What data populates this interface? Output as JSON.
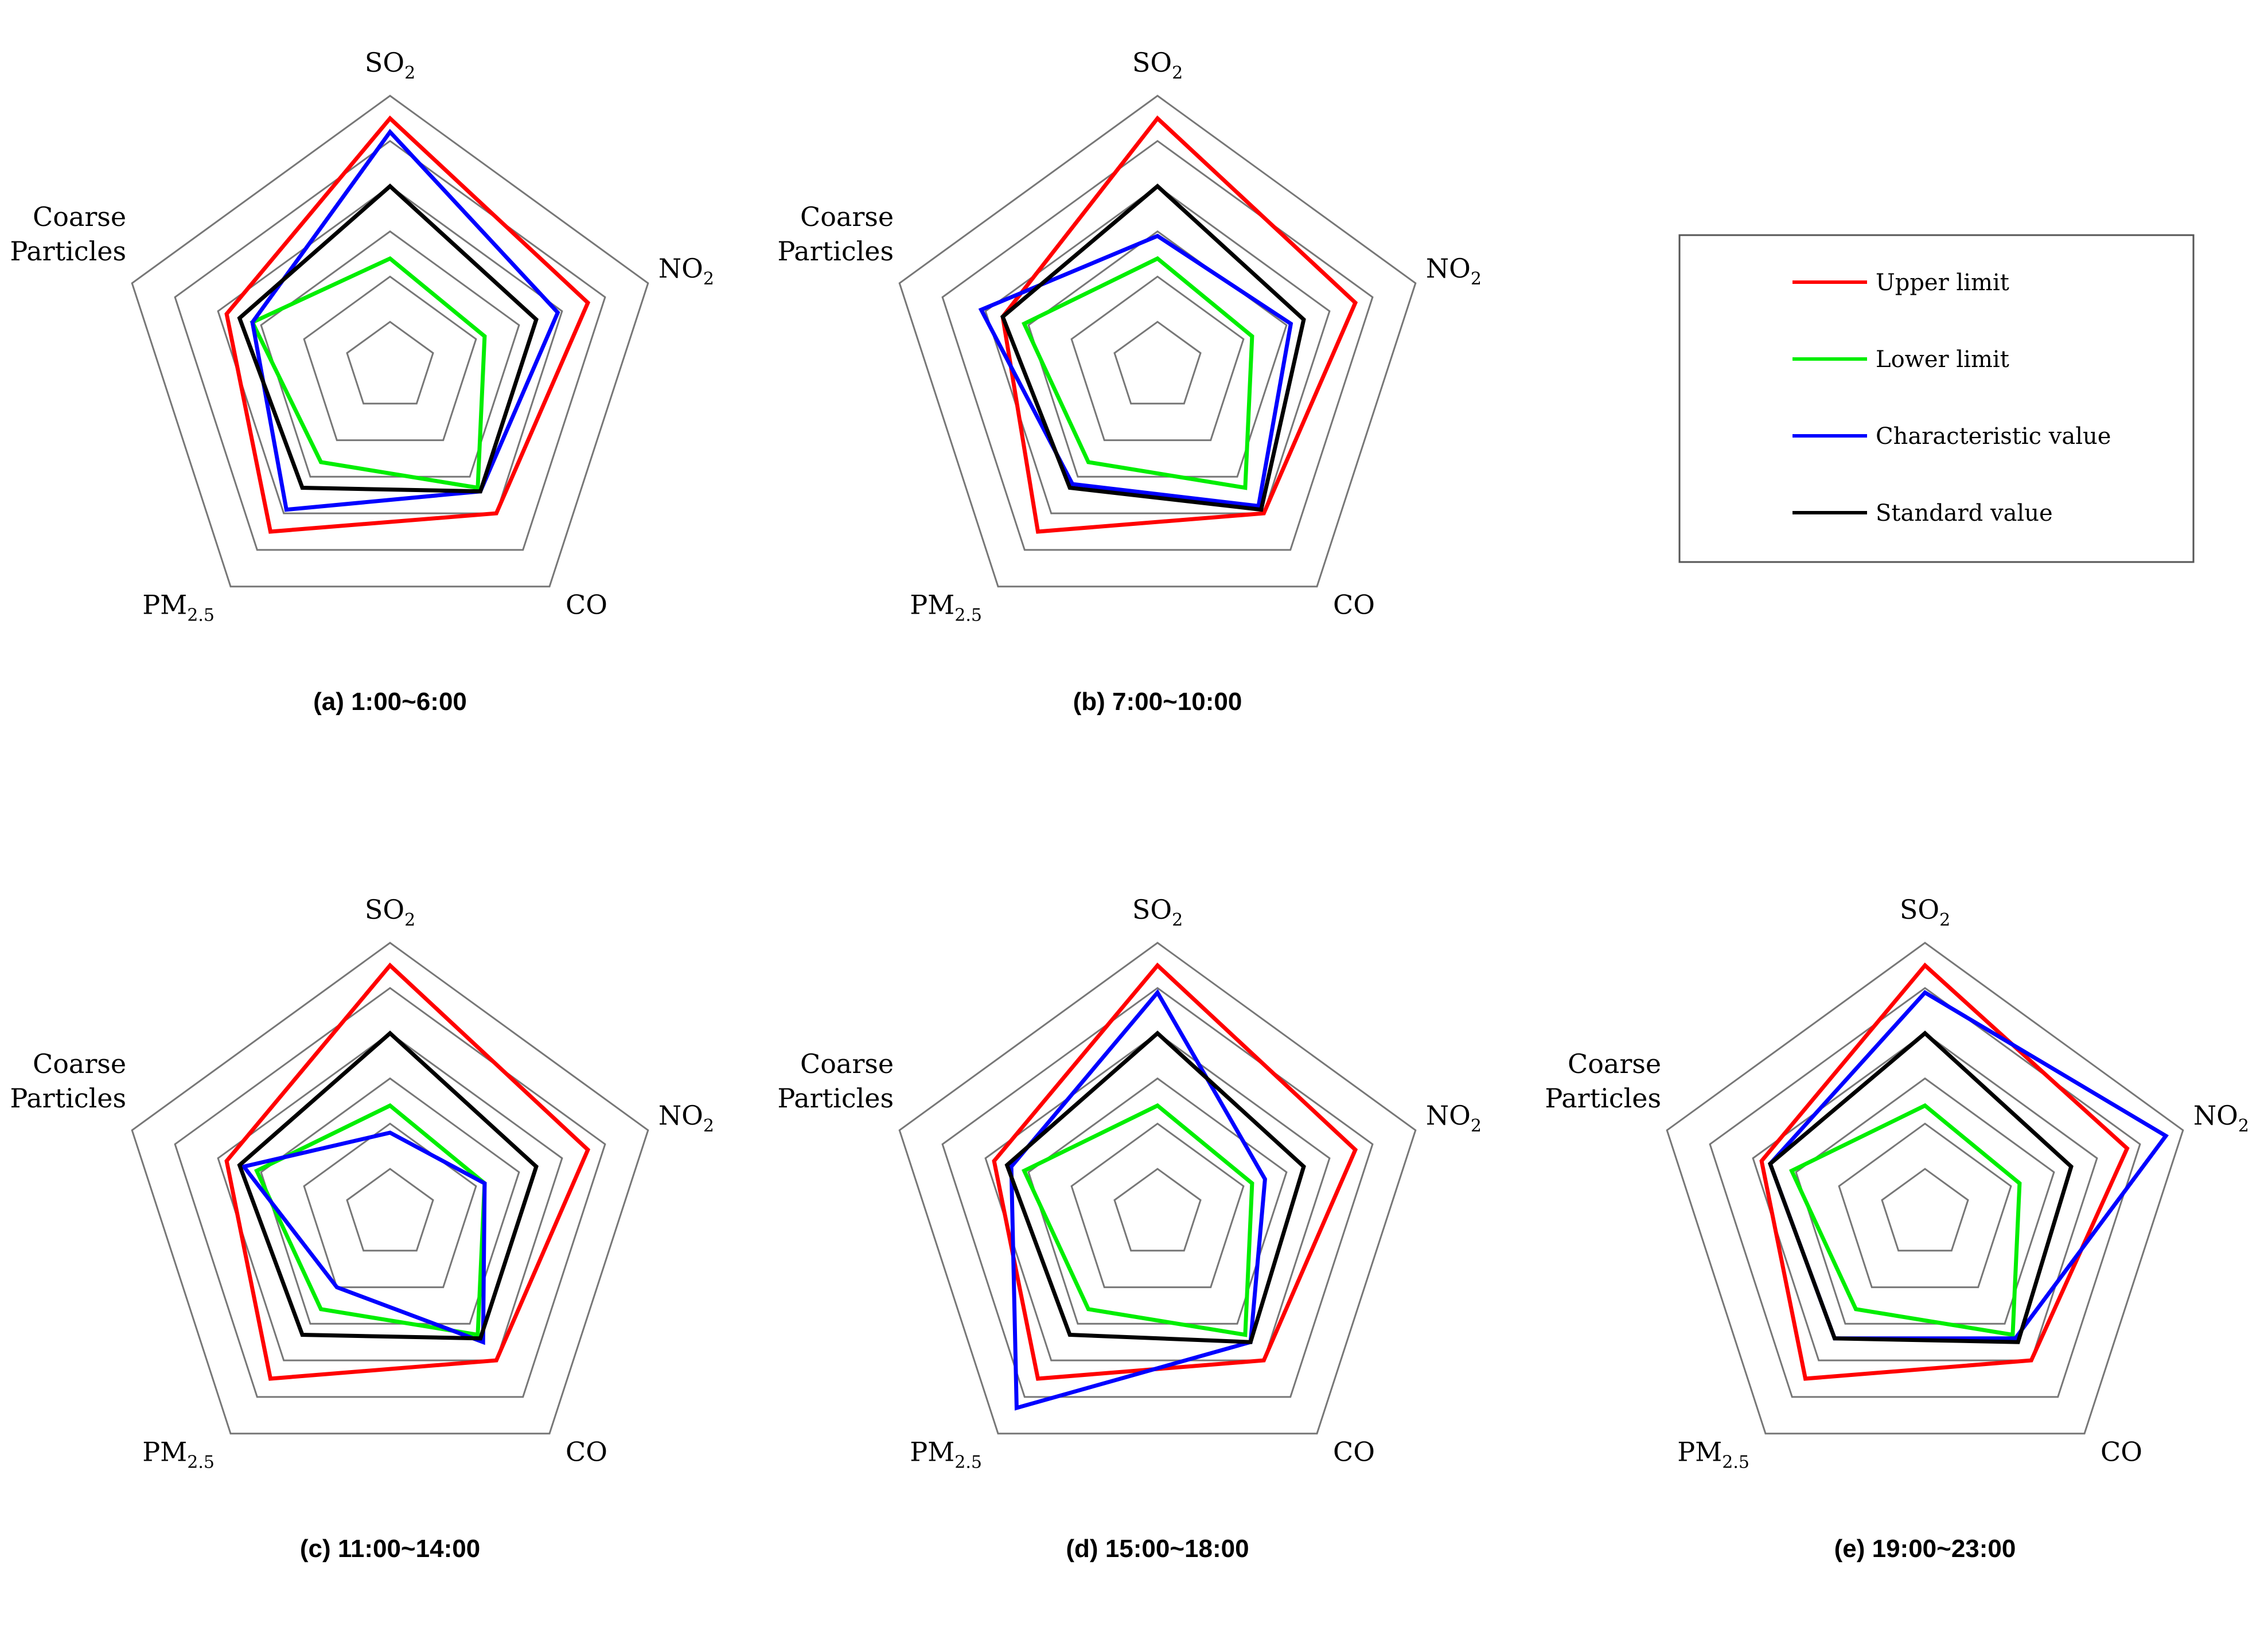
{
  "chart_data": [
    {
      "type": "radar",
      "title": "(a) 1:00~6:00",
      "axes": [
        "SO2",
        "NO2",
        "CO",
        "PM2.5",
        "Coarse Particles"
      ],
      "series": [
        {
          "name": "Upper limit",
          "color": "#ff0000",
          "values": [
            5.5,
            4.6,
            4.0,
            4.5,
            3.8
          ]
        },
        {
          "name": "Lower limit",
          "color": "#00ee00",
          "values": [
            2.4,
            2.2,
            3.3,
            2.6,
            3.2
          ]
        },
        {
          "name": "Characteristic value",
          "color": "#0000ff",
          "values": [
            5.2,
            3.9,
            3.4,
            3.9,
            3.2
          ]
        },
        {
          "name": "Standard value",
          "color": "#000000",
          "values": [
            4.0,
            3.4,
            3.4,
            3.3,
            3.5
          ]
        }
      ]
    },
    {
      "type": "radar",
      "title": "(b) 7:00~10:00",
      "axes": [
        "SO2",
        "NO2",
        "CO",
        "PM2.5",
        "Coarse Particles"
      ],
      "series": [
        {
          "name": "Upper limit",
          "color": "#ff0000",
          "values": [
            5.5,
            4.6,
            4.0,
            4.5,
            3.6
          ]
        },
        {
          "name": "Lower limit",
          "color": "#00ee00",
          "values": [
            2.4,
            2.2,
            3.3,
            2.6,
            3.1
          ]
        },
        {
          "name": "Characteristic value",
          "color": "#0000ff",
          "values": [
            2.9,
            3.1,
            3.8,
            3.2,
            4.1
          ]
        },
        {
          "name": "Standard value",
          "color": "#000000",
          "values": [
            4.0,
            3.4,
            3.9,
            3.3,
            3.6
          ]
        }
      ]
    },
    {
      "type": "radar",
      "title": "(c) 11:00~14:00",
      "axes": [
        "SO2",
        "NO2",
        "CO",
        "PM2.5",
        "Coarse Particles"
      ],
      "series": [
        {
          "name": "Upper limit",
          "color": "#ff0000",
          "values": [
            5.5,
            4.6,
            4.0,
            4.5,
            3.8
          ]
        },
        {
          "name": "Lower limit",
          "color": "#00ee00",
          "values": [
            2.4,
            2.2,
            3.3,
            2.6,
            3.1
          ]
        },
        {
          "name": "Characteristic value",
          "color": "#0000ff",
          "values": [
            1.8,
            2.2,
            3.5,
            2.0,
            3.4
          ]
        },
        {
          "name": "Standard value",
          "color": "#000000",
          "values": [
            4.0,
            3.4,
            3.4,
            3.3,
            3.5
          ]
        }
      ]
    },
    {
      "type": "radar",
      "title": "(d) 15:00~18:00",
      "axes": [
        "SO2",
        "NO2",
        "CO",
        "PM2.5",
        "Coarse Particles"
      ],
      "series": [
        {
          "name": "Upper limit",
          "color": "#ff0000",
          "values": [
            5.5,
            4.6,
            4.0,
            4.5,
            3.8
          ]
        },
        {
          "name": "Lower limit",
          "color": "#00ee00",
          "values": [
            2.4,
            2.2,
            3.3,
            2.6,
            3.1
          ]
        },
        {
          "name": "Characteristic value",
          "color": "#0000ff",
          "values": [
            4.9,
            2.5,
            3.5,
            5.3,
            3.4
          ]
        },
        {
          "name": "Standard value",
          "color": "#000000",
          "values": [
            4.0,
            3.4,
            3.5,
            3.3,
            3.5
          ]
        }
      ]
    },
    {
      "type": "radar",
      "title": "(e) 19:00~23:00",
      "axes": [
        "SO2",
        "NO2",
        "CO",
        "PM2.5",
        "Coarse Particles"
      ],
      "series": [
        {
          "name": "Upper limit",
          "color": "#ff0000",
          "values": [
            5.5,
            4.7,
            4.0,
            4.5,
            3.8
          ]
        },
        {
          "name": "Lower limit",
          "color": "#00ee00",
          "values": [
            2.4,
            2.2,
            3.3,
            2.6,
            3.1
          ]
        },
        {
          "name": "Characteristic value",
          "color": "#0000ff",
          "values": [
            4.9,
            5.6,
            3.4,
            3.4,
            3.6
          ]
        },
        {
          "name": "Standard value",
          "color": "#000000",
          "values": [
            4.0,
            3.4,
            3.5,
            3.4,
            3.6
          ]
        }
      ]
    }
  ],
  "axis_labels": {
    "so2": {
      "main": "SO",
      "sub": "2"
    },
    "no2": {
      "main": "NO",
      "sub": "2"
    },
    "co": {
      "main": "CO",
      "sub": ""
    },
    "pm": {
      "main": "PM",
      "sub": "2.5"
    },
    "coarse_line1": "Coarse",
    "coarse_line2": "Particles"
  },
  "grid": {
    "rings": [
      1,
      2,
      3,
      4,
      5,
      6
    ],
    "max": 6,
    "color": "#777777"
  },
  "legend": {
    "items": [
      {
        "label": "Upper limit",
        "color": "#ff0000"
      },
      {
        "label": "Lower limit",
        "color": "#00ee00"
      },
      {
        "label": "Characteristic value",
        "color": "#0000ff"
      },
      {
        "label": "Standard value",
        "color": "#000000"
      }
    ]
  }
}
